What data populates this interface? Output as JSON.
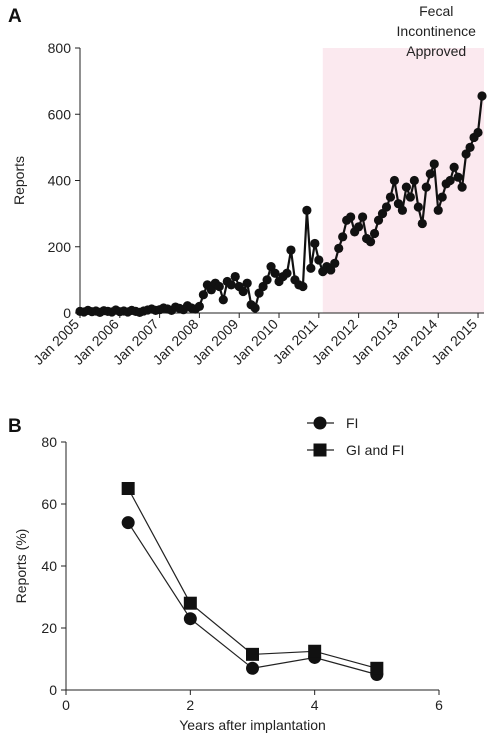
{
  "panel_a_letter": "A",
  "panel_b_letter": "B",
  "chart_data": [
    {
      "type": "line",
      "panel": "A",
      "ylabel": "Reports",
      "xlabel": "",
      "ylim": [
        0,
        800
      ],
      "yticks": [
        0,
        200,
        400,
        600,
        800
      ],
      "x_ticks": [
        2005,
        2006,
        2007,
        2008,
        2009,
        2010,
        2011,
        2012,
        2013,
        2014,
        2015
      ],
      "x_tick_labels": [
        "Jan 2005",
        "Jan 2006",
        "Jan 2007",
        "Jan 2008",
        "Jan 2009",
        "Jan 2010",
        "Jan 2011",
        "Jan 2012",
        "Jan 2013",
        "Jan 2014",
        "Jan 2015"
      ],
      "xlim": [
        2005,
        2015.15
      ],
      "annotation": "Fecal Incontinence Approved",
      "annotation_lines": [
        "Fecal",
        "Incontinence",
        "Approved"
      ],
      "annotation_x": 2014.0,
      "shaded_from": 2011.1,
      "shade_color": "#fbe9ef",
      "line_color": "#111111",
      "x": [
        2005.0,
        2005.1,
        2005.2,
        2005.3,
        2005.4,
        2005.5,
        2005.6,
        2005.7,
        2005.8,
        2005.9,
        2006.0,
        2006.1,
        2006.2,
        2006.3,
        2006.4,
        2006.5,
        2006.6,
        2006.7,
        2006.8,
        2006.9,
        2007.0,
        2007.1,
        2007.2,
        2007.3,
        2007.4,
        2007.5,
        2007.6,
        2007.7,
        2007.8,
        2007.9,
        2008.0,
        2008.1,
        2008.2,
        2008.3,
        2008.4,
        2008.5,
        2008.6,
        2008.7,
        2008.8,
        2008.9,
        2009.0,
        2009.1,
        2009.2,
        2009.3,
        2009.4,
        2009.5,
        2009.6,
        2009.7,
        2009.8,
        2009.9,
        2010.0,
        2010.1,
        2010.2,
        2010.3,
        2010.4,
        2010.5,
        2010.6,
        2010.7,
        2010.8,
        2010.9,
        2011.0,
        2011.1,
        2011.2,
        2011.3,
        2011.4,
        2011.5,
        2011.6,
        2011.7,
        2011.8,
        2011.9,
        2012.0,
        2012.1,
        2012.2,
        2012.3,
        2012.4,
        2012.5,
        2012.6,
        2012.7,
        2012.8,
        2012.9,
        2013.0,
        2013.1,
        2013.2,
        2013.3,
        2013.4,
        2013.5,
        2013.6,
        2013.7,
        2013.8,
        2013.9,
        2014.0,
        2014.1,
        2014.2,
        2014.3,
        2014.4,
        2014.5,
        2014.6,
        2014.7,
        2014.8,
        2014.9,
        2015.0,
        2015.1
      ],
      "values": [
        5,
        3,
        8,
        4,
        6,
        2,
        7,
        5,
        3,
        9,
        4,
        6,
        3,
        8,
        5,
        2,
        6,
        9,
        12,
        8,
        10,
        15,
        12,
        8,
        18,
        14,
        10,
        22,
        15,
        12,
        20,
        55,
        85,
        70,
        90,
        80,
        40,
        95,
        85,
        110,
        80,
        65,
        90,
        25,
        15,
        60,
        80,
        100,
        140,
        120,
        95,
        110,
        120,
        190,
        100,
        85,
        80,
        310,
        135,
        210,
        160,
        125,
        140,
        130,
        150,
        195,
        230,
        280,
        290,
        245,
        260,
        290,
        225,
        215,
        240,
        280,
        300,
        320,
        350,
        400,
        330,
        310,
        380,
        350,
        400,
        320,
        270,
        380,
        420,
        450,
        310,
        350,
        390,
        400,
        440,
        410,
        380,
        480,
        500,
        530,
        545,
        655
      ]
    },
    {
      "type": "line",
      "panel": "B",
      "xlabel": "Years after implantation",
      "ylabel": "Reports (%)",
      "xlim": [
        0,
        6
      ],
      "ylim": [
        0,
        80
      ],
      "xticks": [
        0,
        2,
        4,
        6
      ],
      "yticks": [
        0,
        20,
        40,
        60,
        80
      ],
      "legend_position": "top-right",
      "series": [
        {
          "name": "FI",
          "marker": "circle",
          "x": [
            1,
            2,
            3,
            4,
            5
          ],
          "values": [
            54,
            23,
            7,
            10.5,
            5
          ]
        },
        {
          "name": "GI and FI",
          "marker": "square",
          "x": [
            1,
            2,
            3,
            4,
            5
          ],
          "values": [
            65,
            28,
            11.5,
            12.5,
            7
          ]
        }
      ]
    }
  ]
}
